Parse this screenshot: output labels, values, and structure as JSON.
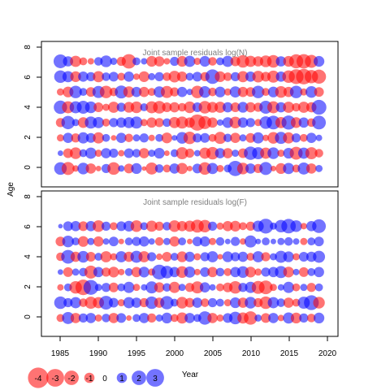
{
  "chart_data": [
    {
      "type": "scatter",
      "title": "Joint sample residuals log(N)",
      "ylabel": "Age",
      "xlim": [
        1982.5,
        2021.5
      ],
      "ylim": [
        -1.2,
        8.3
      ],
      "y_ticks": [
        "0",
        "2",
        "4",
        "6",
        "8"
      ],
      "ages": [
        0,
        1,
        2,
        3,
        4,
        5,
        6,
        7
      ],
      "year_start": 1985,
      "year_end": 2019,
      "residuals": [
        [
          1.5,
          -1.6,
          -0.4,
          1.3,
          -1.0,
          -0.3,
          0.8,
          -1.5,
          0.4,
          -0.9,
          1.1,
          -0.2,
          -1.4,
          0.7,
          -0.6,
          1.0,
          -1.2,
          -0.3,
          0.9,
          -1.5,
          1.2,
          -0.5,
          0.6,
          2.2,
          -1.3,
          1.0,
          -0.8,
          1.6,
          -0.3,
          -1.1,
          1.2,
          -0.6,
          1.4,
          -1.0,
          0.5
        ],
        [
          0.3,
          -0.9,
          -1.3,
          0.6,
          1.2,
          -0.5,
          1.0,
          0.8,
          -0.4,
          0.9,
          0.7,
          -1.0,
          0.5,
          1.1,
          -0.3,
          0.6,
          -1.4,
          -0.8,
          0.4,
          -1.2,
          -1.5,
          1.0,
          -1.0,
          0.5,
          -0.9,
          1.7,
          1.4,
          -1.2,
          1.3,
          -0.5,
          1.1,
          -1.6,
          1.2,
          -1.4,
          -0.7
        ],
        [
          -0.5,
          1.0,
          -0.8,
          1.2,
          0.9,
          -1.2,
          0.6,
          -0.3,
          1.0,
          -0.7,
          0.5,
          0.8,
          -0.4,
          0.6,
          -1.1,
          0.3,
          1.3,
          -1.5,
          0.8,
          0.9,
          -0.6,
          -1.4,
          0.7,
          -1.0,
          0.5,
          -0.9,
          1.2,
          -0.4,
          -1.3,
          1.4,
          -1.2,
          0.8,
          -0.6,
          1.0,
          0.4
        ],
        [
          -0.8,
          1.7,
          0.5,
          -1.1,
          1.4,
          1.2,
          -0.6,
          0.8,
          1.0,
          1.2,
          1.4,
          -0.5,
          -1.0,
          -0.8,
          0.7,
          -1.2,
          -1.4,
          -1.0,
          -2.5,
          -1.6,
          -1.0,
          0.4,
          1.1,
          -1.3,
          1.0,
          0.8,
          -0.5,
          1.5,
          1.8,
          -1.2,
          1.9,
          -1.1,
          1.0,
          -0.7,
          1.8
        ],
        [
          1.7,
          -1.4,
          1.4,
          1.6,
          1.3,
          -0.9,
          -0.5,
          -1.2,
          0.8,
          -1.1,
          -1.3,
          0.6,
          -1.4,
          -1.5,
          -0.9,
          -1.0,
          -0.7,
          -1.3,
          0.9,
          -1.5,
          -1.1,
          -1.2,
          1.0,
          -0.9,
          1.1,
          -1.0,
          -0.8,
          1.6,
          -1.4,
          1.0,
          -1.2,
          -0.7,
          -1.2,
          -1.0,
          2.1
        ],
        [
          -0.5,
          -1.1,
          1.5,
          0.6,
          -0.9,
          1.4,
          -1.5,
          -0.7,
          1.6,
          -1.2,
          1.0,
          -1.0,
          -0.6,
          1.2,
          -1.4,
          -0.8,
          1.0,
          0.4,
          -1.5,
          1.3,
          -0.7,
          1.1,
          -0.5,
          1.2,
          -1.0,
          -0.9,
          1.5,
          -0.6,
          1.1,
          -1.3,
          -1.0,
          1.5,
          -0.5,
          1.3,
          -0.9
        ],
        [
          1.5,
          1.2,
          -1.1,
          1.0,
          0.8,
          -1.2,
          0.7,
          0.9,
          -0.6,
          1.0,
          -0.4,
          -1.1,
          0.5,
          0.8,
          -0.7,
          -1.3,
          -1.0,
          0.6,
          0.9,
          -0.8,
          2.0,
          -1.1,
          -0.7,
          0.8,
          -1.2,
          1.0,
          -1.3,
          -0.9,
          -1.4,
          1.0,
          -1.5,
          -2.1,
          -2.3,
          -1.7,
          -1.9
        ],
        [
          1.8,
          1.0,
          -1.2,
          -0.6,
          -0.4,
          0.7,
          1.3,
          0.5,
          -0.8,
          -2.0,
          0.6,
          0.4,
          -1.1,
          -1.0,
          -0.4,
          0.8,
          -1.1,
          1.2,
          -0.5,
          1.1,
          -0.7,
          0.6,
          1.2,
          -0.9,
          -1.5,
          -1.2,
          -1.0,
          -1.3,
          -1.5,
          1.0,
          -1.1,
          -1.9,
          -2.0,
          -1.6,
          1.1
        ]
      ]
    },
    {
      "type": "scatter",
      "title": "Joint sample residuals log(F)",
      "ylabel": "Age",
      "xlabel": "Year",
      "xlim": [
        1982.5,
        2021.5
      ],
      "ylim": [
        -1.2,
        8.3
      ],
      "x_ticks": [
        "1985",
        "1990",
        "1995",
        "2000",
        "2005",
        "2010",
        "2015",
        "2020"
      ],
      "y_ticks": [
        "0",
        "2",
        "4",
        "6",
        "8"
      ],
      "ages": [
        0,
        1,
        2,
        3,
        4,
        5,
        6
      ],
      "year_start": 1985,
      "year_end": 2019,
      "residuals": [
        [
          -0.6,
          1.4,
          -1.0,
          0.8,
          1.0,
          -0.5,
          0.7,
          -1.0,
          0.9,
          -0.3,
          0.6,
          1.0,
          -0.8,
          0.5,
          1.1,
          -0.6,
          -1.2,
          1.0,
          0.6,
          1.7,
          -1.0,
          -0.5,
          0.9,
          1.5,
          -1.2,
          -1.7,
          0.5,
          -0.9,
          1.0,
          -0.4,
          1.2,
          -1.1,
          0.8,
          -0.7,
          1.1
        ],
        [
          1.5,
          0.8,
          1.2,
          -0.7,
          -1.4,
          -1.2,
          1.8,
          0.9,
          -0.5,
          1.2,
          1.0,
          -0.8,
          1.5,
          -1.0,
          1.7,
          0.6,
          -1.3,
          -0.9,
          1.0,
          -0.7,
          0.8,
          0.6,
          -0.5,
          1.1,
          -1.0,
          1.3,
          -0.8,
          -1.5,
          1.2,
          0.7,
          -1.0,
          -0.6,
          1.4,
          2.1,
          -1.3
        ],
        [
          -0.4,
          0.6,
          -1.5,
          -2.3,
          2.1,
          0.5,
          0.8,
          -0.9,
          0.6,
          1.2,
          -0.5,
          0.4,
          1.4,
          -1.0,
          0.7,
          -1.2,
          0.5,
          -0.8,
          -1.4,
          1.0,
          0.4,
          -0.6,
          -0.9,
          -1.5,
          0.8,
          1.2,
          -1.6,
          -1.8,
          -0.5,
          0.4,
          1.2,
          -0.6,
          0.5,
          -0.8,
          0.6
        ],
        [
          0.3,
          -0.9,
          0.5,
          0.7,
          -1.6,
          1.0,
          -0.8,
          -1.1,
          -0.4,
          0.6,
          -1.0,
          1.1,
          -0.5,
          2.1,
          1.5,
          1.0,
          -1.3,
          1.2,
          -0.4,
          0.9,
          -1.0,
          0.7,
          -0.6,
          1.0,
          1.3,
          -1.1,
          -0.5,
          0.8,
          1.0,
          1.4,
          -1.1,
          0.4,
          -0.9,
          0.6,
          1.0
        ],
        [
          -0.7,
          1.8,
          -1.0,
          1.3,
          -0.9,
          0.6,
          -1.2,
          -0.5,
          1.2,
          -1.0,
          1.4,
          -1.2,
          0.8,
          -0.4,
          -0.9,
          0.6,
          -1.1,
          1.0,
          -0.5,
          0.8,
          1.2,
          -0.3,
          1.1,
          0.8,
          1.0,
          -0.6,
          1.2,
          -0.8,
          0.5,
          1.4,
          1.1,
          -0.5,
          0.9,
          1.0,
          1.4
        ],
        [
          -0.9,
          1.3,
          0.6,
          -1.1,
          0.5,
          -1.0,
          0.4,
          0.9,
          -0.3,
          0.6,
          0.8,
          1.0,
          0.4,
          -0.7,
          0.5,
          -1.0,
          0.6,
          -0.3,
          0.9,
          1.0,
          -0.5,
          0.7,
          0.3,
          0.8,
          -0.4,
          1.4,
          0.3,
          0.6,
          0.3,
          0.5,
          0.7,
          0.4,
          -0.5,
          0.6,
          0.9
        ],
        [
          0.2,
          0.9,
          1.0,
          -0.9,
          1.0,
          -1.3,
          0.8,
          -0.6,
          0.9,
          1.1,
          -1.3,
          0.6,
          -1.2,
          -0.8,
          0.7,
          -1.3,
          -1.0,
          -1.2,
          -1.6,
          -1.5,
          0.8,
          -0.5,
          -1.0,
          -1.1,
          -0.6,
          -0.8,
          1.2,
          2.1,
          0.5,
          1.5,
          2.0,
          1.3,
          -0.4,
          1.0,
          1.8
        ]
      ]
    }
  ],
  "legend": {
    "values": [
      "-4",
      "-3",
      "-2",
      "-1",
      "0",
      "1",
      "2",
      "3"
    ],
    "title": "Year"
  },
  "colors": {
    "negative": "#ff0000",
    "positive": "#0000ff",
    "title_text": "#808080"
  }
}
